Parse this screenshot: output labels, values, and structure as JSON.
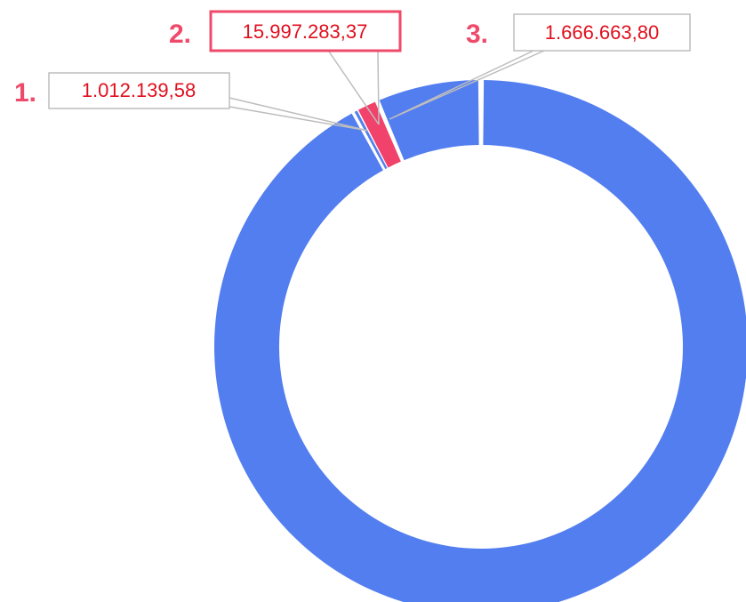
{
  "annotations": [
    {
      "marker": "1.",
      "label": "1.012.139,58"
    },
    {
      "marker": "2.",
      "label": "15.997.283,37"
    },
    {
      "marker": "3.",
      "label": "1.666.663,80"
    }
  ]
}
